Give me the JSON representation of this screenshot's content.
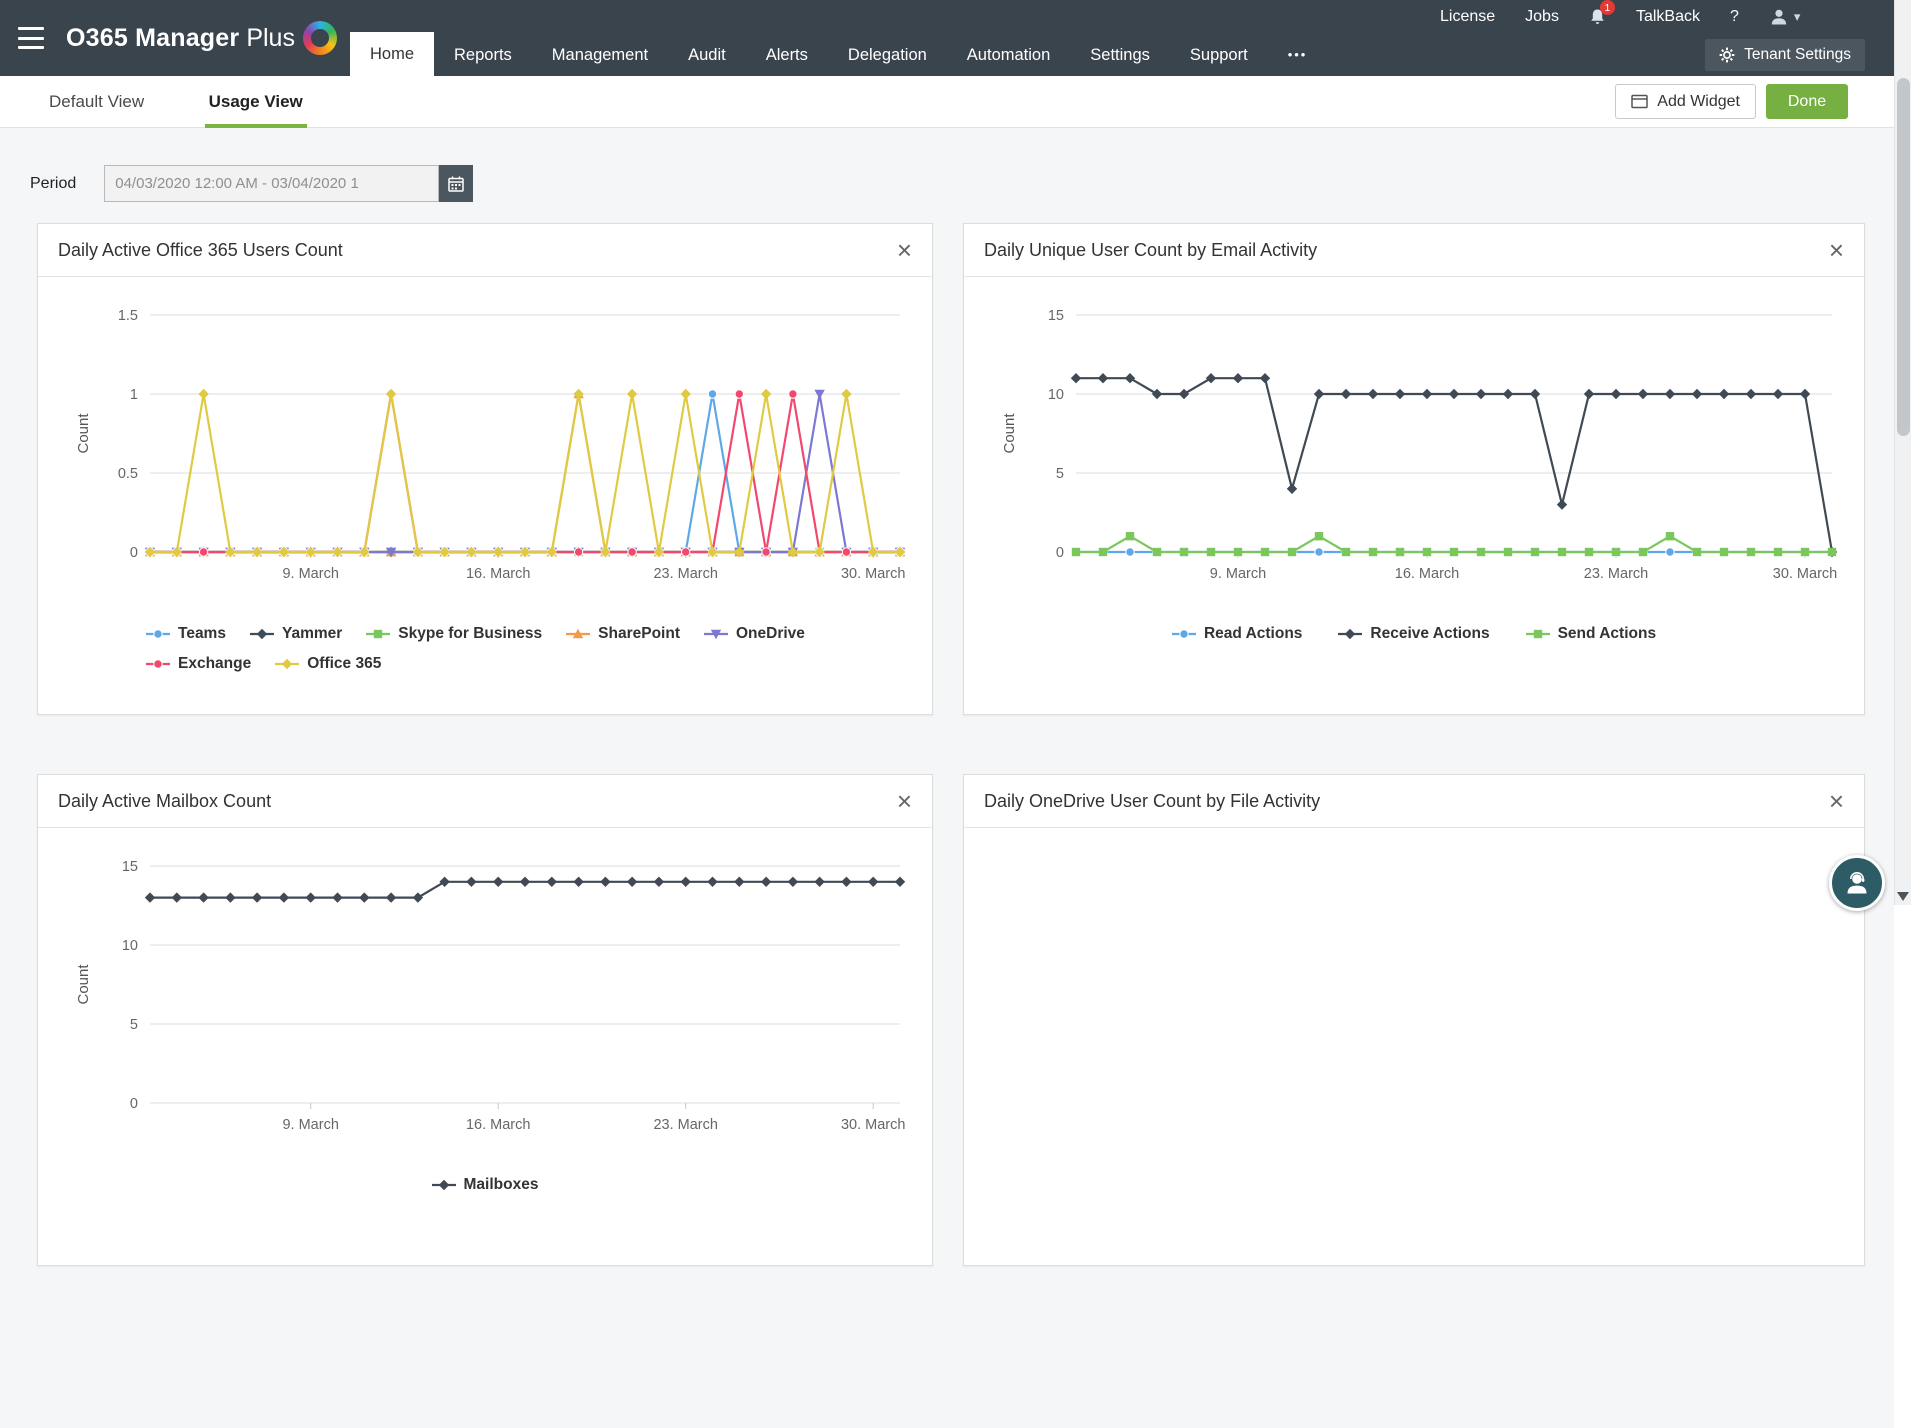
{
  "header": {
    "brand": {
      "name_bold": "O365 Manager",
      "name_light": "Plus"
    },
    "nav": [
      {
        "label": "Home",
        "active": true
      },
      {
        "label": "Reports"
      },
      {
        "label": "Management"
      },
      {
        "label": "Audit"
      },
      {
        "label": "Alerts"
      },
      {
        "label": "Delegation"
      },
      {
        "label": "Automation"
      },
      {
        "label": "Settings"
      },
      {
        "label": "Support"
      },
      {
        "label": "•••"
      }
    ],
    "utils": {
      "license": "License",
      "jobs": "Jobs",
      "notification_count": "1",
      "talkback": "TalkBack",
      "help": "?"
    },
    "tenant_settings_label": "Tenant Settings"
  },
  "viewbar": {
    "tabs": [
      {
        "label": "Default View",
        "active": false
      },
      {
        "label": "Usage View",
        "active": true
      }
    ],
    "add_widget_label": "Add Widget",
    "done_label": "Done"
  },
  "period": {
    "label": "Period",
    "value": "04/03/2020 12:00 AM - 03/04/2020 1"
  },
  "icons": {
    "close": "×",
    "caret_down": "▾"
  },
  "colors": {
    "header_bg": "#3a444d",
    "accent_green": "#76b043",
    "tab_underline": "#7cb342",
    "badge_red": "#e53935"
  },
  "chart_data": [
    {
      "type": "line",
      "title": "Daily Active Office 365 Users Count",
      "ylabel": "Count",
      "ylim": [
        0,
        1.5
      ],
      "yticks": [
        0,
        0.5,
        1,
        1.5
      ],
      "x_days": [
        3,
        4,
        5,
        6,
        7,
        8,
        9,
        10,
        11,
        12,
        13,
        14,
        15,
        16,
        17,
        18,
        19,
        20,
        21,
        22,
        23,
        24,
        25,
        26,
        27,
        28,
        29,
        30,
        31
      ],
      "xticks": [
        {
          "day": 9,
          "label": "9. March"
        },
        {
          "day": 16,
          "label": "16. March"
        },
        {
          "day": 23,
          "label": "23. March"
        },
        {
          "day": 30,
          "label": "30. March"
        }
      ],
      "series": [
        {
          "name": "Teams",
          "color": "#5fa8e8",
          "marker": "circle",
          "values": [
            0,
            0,
            0,
            0,
            0,
            0,
            0,
            0,
            0,
            0,
            0,
            0,
            0,
            0,
            0,
            0,
            0,
            0,
            0,
            0,
            0,
            1,
            0,
            0,
            0,
            0,
            0,
            0,
            0
          ]
        },
        {
          "name": "Yammer",
          "color": "#3e4c59",
          "marker": "diamond",
          "values": [
            0,
            0,
            0,
            0,
            0,
            0,
            0,
            0,
            0,
            0,
            0,
            0,
            0,
            0,
            0,
            0,
            0,
            0,
            0,
            0,
            0,
            0,
            0,
            0,
            0,
            0,
            0,
            0,
            0
          ]
        },
        {
          "name": "Skype for Business",
          "color": "#7cc75c",
          "marker": "square",
          "values": [
            0,
            0,
            0,
            0,
            0,
            0,
            0,
            0,
            0,
            0,
            0,
            0,
            0,
            0,
            0,
            0,
            0,
            0,
            0,
            0,
            0,
            0,
            0,
            0,
            0,
            0,
            0,
            0,
            0
          ]
        },
        {
          "name": "SharePoint",
          "color": "#f29a4b",
          "marker": "triangle",
          "values": [
            0,
            0,
            0,
            0,
            0,
            0,
            0,
            0,
            0,
            0,
            0,
            0,
            0,
            0,
            0,
            0,
            1,
            0,
            0,
            0,
            0,
            0,
            0,
            0,
            0,
            0,
            0,
            0,
            0
          ]
        },
        {
          "name": "OneDrive",
          "color": "#7d78d2",
          "marker": "triangle-down",
          "values": [
            0,
            0,
            0,
            0,
            0,
            0,
            0,
            0,
            0,
            0,
            0,
            0,
            0,
            0,
            0,
            0,
            0,
            0,
            0,
            0,
            0,
            0,
            0,
            0,
            0,
            1,
            0,
            0,
            0
          ]
        },
        {
          "name": "Exchange",
          "color": "#f2486d",
          "marker": "circle",
          "values": [
            0,
            0,
            0,
            0,
            0,
            0,
            0,
            0,
            0,
            1,
            0,
            0,
            0,
            0,
            0,
            0,
            0,
            0,
            0,
            0,
            0,
            0,
            1,
            0,
            1,
            0,
            0,
            0,
            0
          ]
        },
        {
          "name": "Office 365",
          "color": "#e0ca42",
          "marker": "diamond",
          "values": [
            0,
            0,
            1,
            0,
            0,
            0,
            0,
            0,
            0,
            1,
            0,
            0,
            0,
            0,
            0,
            0,
            1,
            0,
            1,
            0,
            1,
            0,
            0,
            1,
            0,
            0,
            1,
            0,
            0
          ]
        }
      ]
    },
    {
      "type": "line",
      "title": "Daily Unique User Count by Email Activity",
      "ylabel": "Count",
      "ylim": [
        0,
        15
      ],
      "yticks": [
        0,
        5,
        10,
        15
      ],
      "x_days": [
        3,
        4,
        5,
        6,
        7,
        8,
        9,
        10,
        11,
        12,
        13,
        14,
        15,
        16,
        17,
        18,
        19,
        20,
        21,
        22,
        23,
        24,
        25,
        26,
        27,
        28,
        29,
        30,
        31
      ],
      "xticks": [
        {
          "day": 9,
          "label": "9. March"
        },
        {
          "day": 16,
          "label": "16. March"
        },
        {
          "day": 23,
          "label": "23. March"
        },
        {
          "day": 30,
          "label": "30. March"
        }
      ],
      "series": [
        {
          "name": "Read Actions",
          "color": "#5fa8e8",
          "marker": "circle",
          "values": [
            0,
            0,
            0,
            0,
            0,
            0,
            0,
            0,
            0,
            0,
            0,
            0,
            0,
            0,
            0,
            0,
            0,
            0,
            0,
            0,
            0,
            0,
            0,
            0,
            0,
            0,
            0,
            0,
            0
          ]
        },
        {
          "name": "Receive Actions",
          "color": "#3f4a54",
          "marker": "diamond",
          "values": [
            11,
            11,
            11,
            10,
            10,
            11,
            11,
            11,
            4,
            10,
            10,
            10,
            10,
            10,
            10,
            10,
            10,
            10,
            3,
            10,
            10,
            10,
            10,
            10,
            10,
            10,
            10,
            10,
            0
          ]
        },
        {
          "name": "Send Actions",
          "color": "#7cc75c",
          "marker": "square",
          "values": [
            0,
            0,
            1,
            0,
            0,
            0,
            0,
            0,
            0,
            1,
            0,
            0,
            0,
            0,
            0,
            0,
            0,
            0,
            0,
            0,
            0,
            0,
            1,
            0,
            0,
            0,
            0,
            0,
            0
          ]
        }
      ]
    },
    {
      "type": "line",
      "title": "Daily Active Mailbox Count",
      "ylabel": "Count",
      "ylim": [
        0,
        15
      ],
      "yticks": [
        0,
        5,
        10,
        15
      ],
      "x_days": [
        3,
        4,
        5,
        6,
        7,
        8,
        9,
        10,
        11,
        12,
        13,
        14,
        15,
        16,
        17,
        18,
        19,
        20,
        21,
        22,
        23,
        24,
        25,
        26,
        27,
        28,
        29,
        30,
        31
      ],
      "xticks": [
        {
          "day": 9,
          "label": "9. March"
        },
        {
          "day": 16,
          "label": "16. March"
        },
        {
          "day": 23,
          "label": "23. March"
        },
        {
          "day": 30,
          "label": "30. March"
        }
      ],
      "series": [
        {
          "name": "Mailboxes",
          "color": "#3f4a54",
          "marker": "diamond",
          "values": [
            13,
            13,
            13,
            13,
            13,
            13,
            13,
            13,
            13,
            13,
            13,
            14,
            14,
            14,
            14,
            14,
            14,
            14,
            14,
            14,
            14,
            14,
            14,
            14,
            14,
            14,
            14,
            14,
            14
          ]
        }
      ]
    },
    {
      "type": "line",
      "title": "Daily OneDrive User Count by File Activity",
      "ylabel": "",
      "ylim": [
        0,
        15
      ],
      "yticks": [],
      "x_days": [],
      "xticks": [],
      "series": []
    }
  ]
}
